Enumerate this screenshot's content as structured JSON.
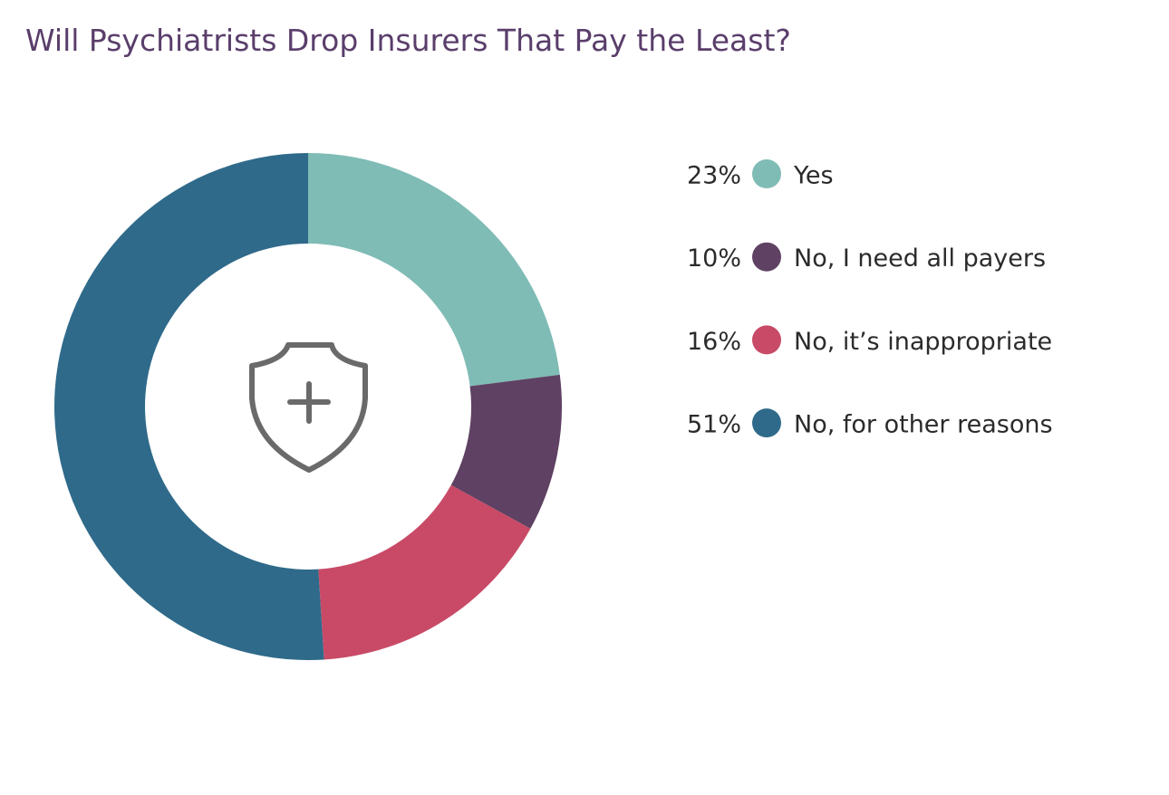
{
  "chart_data": {
    "type": "donut",
    "title": "Will Psychiatrists Drop Insurers That Pay the Least?",
    "categories": [
      "Yes",
      "No, I need all payers",
      "No, it’s inappropriate",
      "No, for other reasons"
    ],
    "values": [
      23,
      10,
      16,
      51
    ],
    "value_labels": [
      "23%",
      "10%",
      "16%",
      "51%"
    ],
    "colors": [
      "#7fbcb5",
      "#5f4163",
      "#c84a67",
      "#2f6a8a"
    ]
  }
}
